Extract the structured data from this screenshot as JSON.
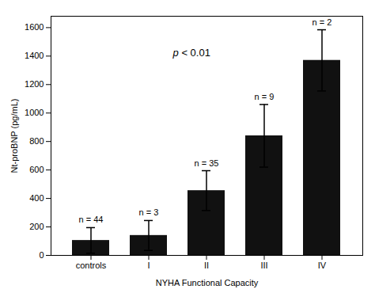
{
  "chart_data": {
    "type": "bar",
    "xlabel": "NYHA Functional Capacity",
    "ylabel": "Nt-proBNP (pg/mL)",
    "categories": [
      "controls",
      "I",
      "II",
      "III",
      "IV"
    ],
    "values": [
      105,
      140,
      455,
      840,
      1370
    ],
    "errors": [
      90,
      105,
      140,
      220,
      215
    ],
    "n_labels": [
      "n = 44",
      "n = 3",
      "n = 35",
      "n = 9",
      "n = 2"
    ],
    "annotation": "p < 0.01",
    "color": "#111111",
    "ylim": [
      0,
      1680
    ],
    "yticks": [
      0,
      200,
      400,
      600,
      800,
      1000,
      1200,
      1400,
      1600
    ],
    "grid": false
  }
}
